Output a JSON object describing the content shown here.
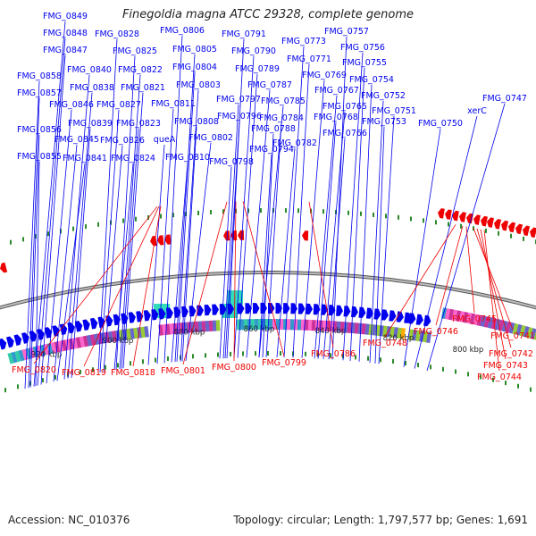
{
  "title": "Finegoldia magna ATCC 29328, complete genome",
  "footer": {
    "accession": "Accession: NC_010376",
    "stats": "Topology: circular; Length: 1,797,577 bp; Genes: 1,691"
  },
  "colors": {
    "forward_strand": "#0000ee",
    "reverse_strand": "#ee0000",
    "backbone": "#8a8a8a",
    "gc_tick": "#2a8a2a"
  },
  "axis_ticks": [
    "920 kbp",
    "900 kbp",
    "880 kbp",
    "860 kbp",
    "840 kbp",
    "820 kbp",
    "800 kbp"
  ],
  "forward_labels": [
    "FMG_0849",
    "FMG_0848",
    "FMG_0847",
    "FMG_0858",
    "FMG_0857",
    "FMG_0840",
    "FMG_0846",
    "FMG_0838",
    "FMG_0839",
    "FMG_0856",
    "FMG_0845",
    "FMG_0855",
    "FMG_0841",
    "FMG_0828",
    "FMG_0825",
    "FMG_0822",
    "FMG_0821",
    "FMG_0827",
    "FMG_0823",
    "FMG_0826",
    "FMG_0824",
    "FMG_0806",
    "FMG_0805",
    "FMG_0804",
    "FMG_0803",
    "FMG_0811",
    "FMG_0808",
    "FMG_0802",
    "queA",
    "FMG_0810",
    "FMG_0791",
    "FMG_0790",
    "FMG_0789",
    "FMG_0787",
    "FMG_0797",
    "FMG_0785",
    "FMG_0796",
    "FMG_0784",
    "FMG_0788",
    "FMG_0794",
    "FMG_0782",
    "FMG_0798",
    "FMG_0773",
    "FMG_0771",
    "FMG_0769",
    "FMG_0767",
    "FMG_0765",
    "FMG_0768",
    "FMG_0766",
    "FMG_0757",
    "FMG_0756",
    "FMG_0755",
    "FMG_0754",
    "FMG_0752",
    "FMG_0751",
    "FMG_0753",
    "FMG_0750",
    "FMG_0747",
    "xerC"
  ],
  "reverse_labels": [
    "FMG_0820",
    "FMG_0819",
    "FMG_0818",
    "FMG_0801",
    "FMG_0800",
    "FMG_0799",
    "FMG_0786",
    "FMG_0748",
    "FMG_0746",
    "FMG_0745",
    "FMG_0741",
    "FMG_0742",
    "FMG_0743",
    "FMG_0744"
  ]
}
